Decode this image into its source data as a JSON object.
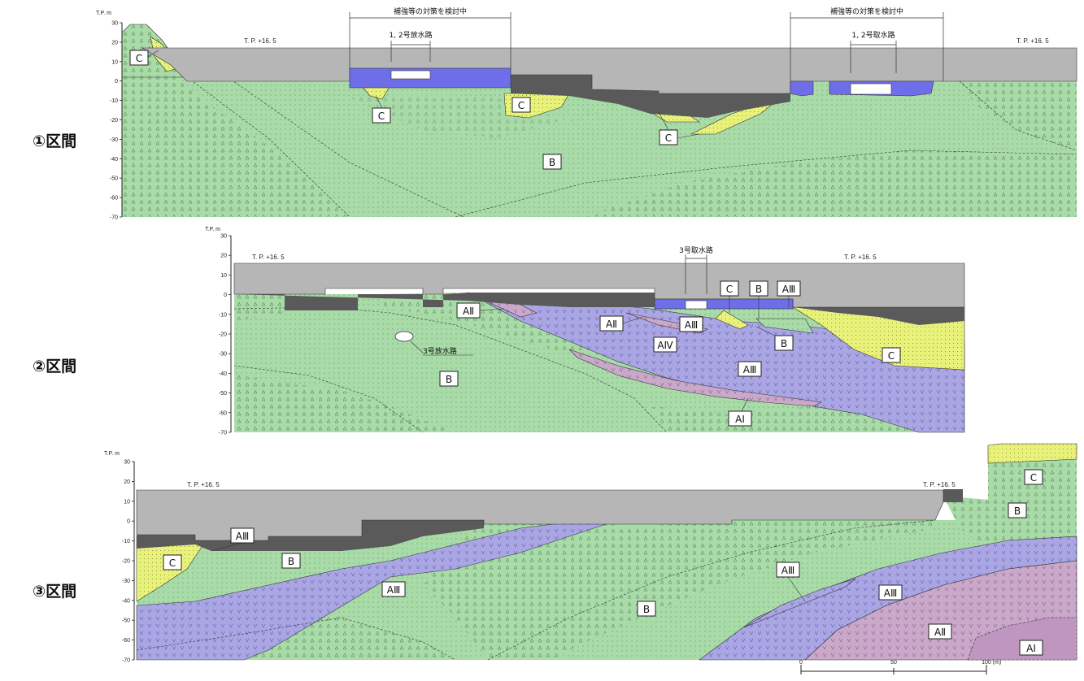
{
  "sections": [
    {
      "id": "s1",
      "label": "①区間",
      "tp_axis": "T.P. m",
      "ticks": [
        "30",
        "20",
        "10",
        "0",
        "-10",
        "-20",
        "-30",
        "-40",
        "-50",
        "-60",
        "-70"
      ],
      "ground_left": "T. P. +16. 5",
      "ground_right": "T. P. +16. 5",
      "callout_left": "補強等の対策を検討中",
      "callout_right": "補強等の対策を検討中",
      "structure_left": "1, 2号放水路",
      "structure_right": "1, 2号取水路",
      "labels": [
        "C",
        "C",
        "C",
        "C",
        "B"
      ]
    },
    {
      "id": "s2",
      "label": "②区間",
      "tp_axis": "T.P. m",
      "ticks": [
        "30",
        "20",
        "10",
        "0",
        "-10",
        "-20",
        "-30",
        "-40",
        "-50",
        "-60",
        "-70"
      ],
      "ground_left": "T. P. +16. 5",
      "ground_right": "T. P. +16. 5",
      "structure_top": "3号取水路",
      "structure_pipe": "3号放水路",
      "labels": [
        "AⅡ",
        "AⅡ",
        "AⅢ",
        "AⅣ",
        "AⅢ",
        "AⅢ",
        "C",
        "B",
        "B",
        "B",
        "C",
        "AⅠ"
      ]
    },
    {
      "id": "s3",
      "label": "③区間",
      "tp_axis": "T.P. m",
      "ticks": [
        "30",
        "20",
        "10",
        "0",
        "-10",
        "-20",
        "-30",
        "-40",
        "-50",
        "-60",
        "-70"
      ],
      "ground_left": "T. P. +16. 5",
      "ground_right": "T. P. +16. 5",
      "labels": [
        "AⅢ",
        "C",
        "B",
        "AⅢ",
        "B",
        "AⅢ",
        "AⅢ",
        "AⅡ",
        "AⅠ",
        "B",
        "C"
      ]
    }
  ],
  "scale_bar": {
    "ticks": [
      "0",
      "50",
      "100"
    ],
    "unit": "(m)"
  },
  "colors": {
    "green": "#a8dba8",
    "yellow": "#e8f27a",
    "purple": "#aaa6e4",
    "magenta": "#c9a8c9",
    "fill_gray": "#b6b6b6",
    "dark_gray": "#5a5a5a",
    "structure_blue": "#6e6ee8"
  }
}
